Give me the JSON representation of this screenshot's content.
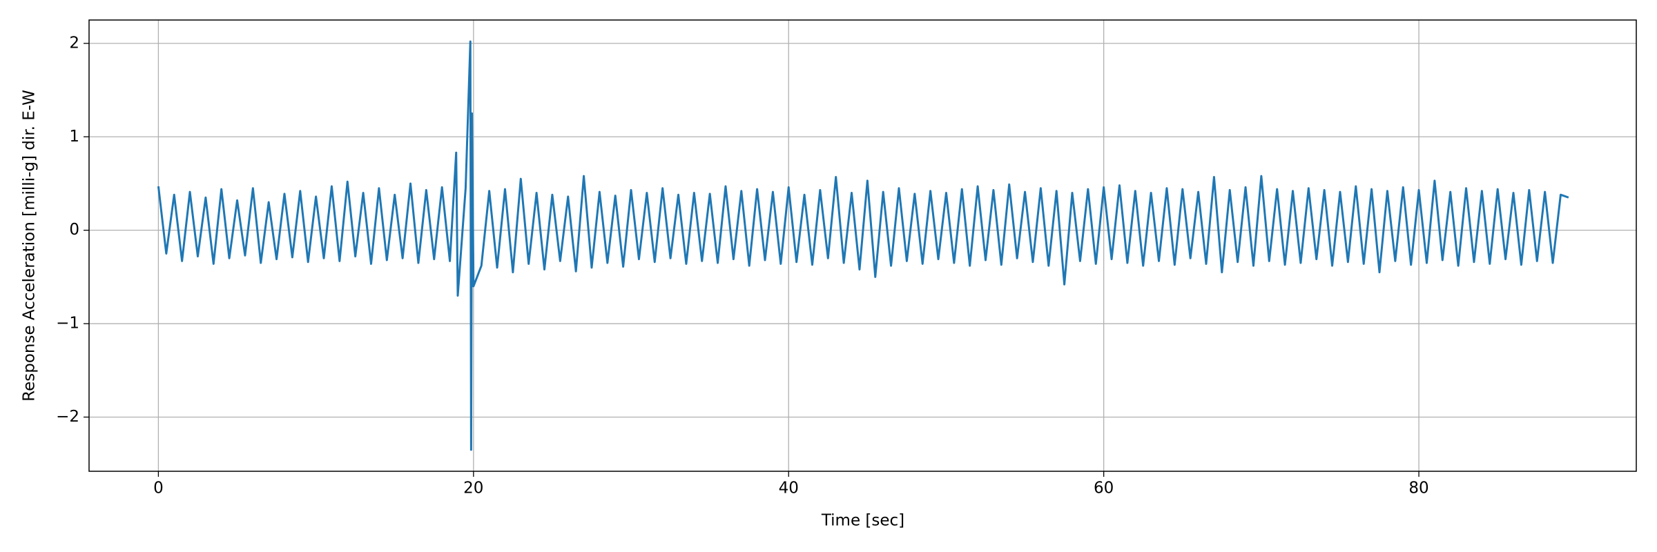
{
  "chart_data": {
    "type": "line",
    "xlabel": "Time [sec]",
    "ylabel": "Response Acceleration [milli-g] dir. E-W",
    "xlim": [
      -4.4,
      93.8
    ],
    "ylim": [
      -2.58,
      2.25
    ],
    "xticks": [
      0,
      20,
      40,
      60,
      80
    ],
    "yticks": [
      {
        "value": -2,
        "label": "−2"
      },
      {
        "value": -1,
        "label": "−1"
      },
      0,
      1,
      2
    ],
    "grid": true,
    "x": [
      0,
      0.5,
      1,
      1.5,
      2,
      2.5,
      3,
      3.5,
      4,
      4.5,
      5,
      5.5,
      6,
      6.5,
      7,
      7.5,
      8,
      8.5,
      9,
      9.5,
      10,
      10.5,
      11,
      11.5,
      12,
      12.5,
      13,
      13.5,
      14,
      14.5,
      15,
      15.5,
      16,
      16.5,
      17,
      17.5,
      18,
      18.5,
      18.9,
      19,
      19.5,
      19.8,
      19.85,
      19.9,
      20,
      20.5,
      21,
      21.5,
      22,
      22.5,
      23,
      23.5,
      24,
      24.5,
      25,
      25.5,
      26,
      26.5,
      27,
      27.5,
      28,
      28.5,
      29,
      29.5,
      30,
      30.5,
      31,
      31.5,
      32,
      32.5,
      33,
      33.5,
      34,
      34.5,
      35,
      35.5,
      36,
      36.5,
      37,
      37.5,
      38,
      38.5,
      39,
      39.5,
      40,
      40.5,
      41,
      41.5,
      42,
      42.5,
      43,
      43.5,
      44,
      44.5,
      45,
      45.5,
      46,
      46.5,
      47,
      47.5,
      48,
      48.5,
      49,
      49.5,
      50,
      50.5,
      51,
      51.5,
      52,
      52.5,
      53,
      53.5,
      54,
      54.5,
      55,
      55.5,
      56,
      56.5,
      57,
      57.5,
      58,
      58.5,
      59,
      59.5,
      60,
      60.5,
      61,
      61.5,
      62,
      62.5,
      63,
      63.5,
      64,
      64.5,
      65,
      65.5,
      66,
      66.5,
      67,
      67.5,
      68,
      68.5,
      69,
      69.5,
      70,
      70.5,
      71,
      71.5,
      72,
      72.5,
      73,
      73.5,
      74,
      74.5,
      75,
      75.5,
      76,
      76.5,
      77,
      77.5,
      78,
      78.5,
      79,
      79.5,
      80,
      80.5,
      81,
      81.5,
      82,
      82.5,
      83,
      83.5,
      84,
      84.5,
      85,
      85.5,
      86,
      86.5,
      87,
      87.5,
      88,
      88.5,
      89,
      89.5
    ],
    "series": [
      {
        "color": "#1f77b4",
        "values": [
          0.47,
          -0.25,
          0.38,
          -0.33,
          0.41,
          -0.28,
          0.35,
          -0.36,
          0.44,
          -0.3,
          0.32,
          -0.27,
          0.45,
          -0.35,
          0.3,
          -0.31,
          0.39,
          -0.29,
          0.42,
          -0.34,
          0.36,
          -0.3,
          0.47,
          -0.33,
          0.52,
          -0.28,
          0.4,
          -0.36,
          0.45,
          -0.32,
          0.38,
          -0.3,
          0.5,
          -0.35,
          0.43,
          -0.31,
          0.46,
          -0.33,
          0.83,
          -0.7,
          0.45,
          2.02,
          -2.35,
          1.25,
          -0.6,
          -0.38,
          0.42,
          -0.4,
          0.44,
          -0.45,
          0.55,
          -0.36,
          0.4,
          -0.42,
          0.38,
          -0.33,
          0.36,
          -0.44,
          0.58,
          -0.4,
          0.41,
          -0.35,
          0.37,
          -0.39,
          0.43,
          -0.31,
          0.4,
          -0.34,
          0.45,
          -0.3,
          0.38,
          -0.36,
          0.4,
          -0.33,
          0.39,
          -0.35,
          0.47,
          -0.31,
          0.42,
          -0.38,
          0.44,
          -0.32,
          0.41,
          -0.36,
          0.46,
          -0.34,
          0.38,
          -0.37,
          0.43,
          -0.3,
          0.57,
          -0.35,
          0.4,
          -0.42,
          0.53,
          -0.5,
          0.41,
          -0.38,
          0.45,
          -0.33,
          0.39,
          -0.36,
          0.42,
          -0.31,
          0.4,
          -0.35,
          0.44,
          -0.38,
          0.47,
          -0.32,
          0.43,
          -0.37,
          0.49,
          -0.3,
          0.41,
          -0.34,
          0.45,
          -0.38,
          0.42,
          -0.58,
          0.4,
          -0.33,
          0.44,
          -0.36,
          0.46,
          -0.31,
          0.48,
          -0.35,
          0.42,
          -0.38,
          0.4,
          -0.33,
          0.45,
          -0.37,
          0.44,
          -0.3,
          0.41,
          -0.36,
          0.57,
          -0.45,
          0.43,
          -0.34,
          0.46,
          -0.38,
          0.58,
          -0.33,
          0.44,
          -0.37,
          0.42,
          -0.35,
          0.45,
          -0.31,
          0.43,
          -0.38,
          0.41,
          -0.34,
          0.47,
          -0.36,
          0.44,
          -0.45,
          0.42,
          -0.33,
          0.46,
          -0.37,
          0.43,
          -0.35,
          0.53,
          -0.32,
          0.41,
          -0.38,
          0.45,
          -0.34,
          0.42,
          -0.36,
          0.44,
          -0.31,
          0.4,
          -0.37,
          0.43,
          -0.33,
          0.41,
          -0.35,
          0.38,
          0.35
        ]
      }
    ]
  }
}
